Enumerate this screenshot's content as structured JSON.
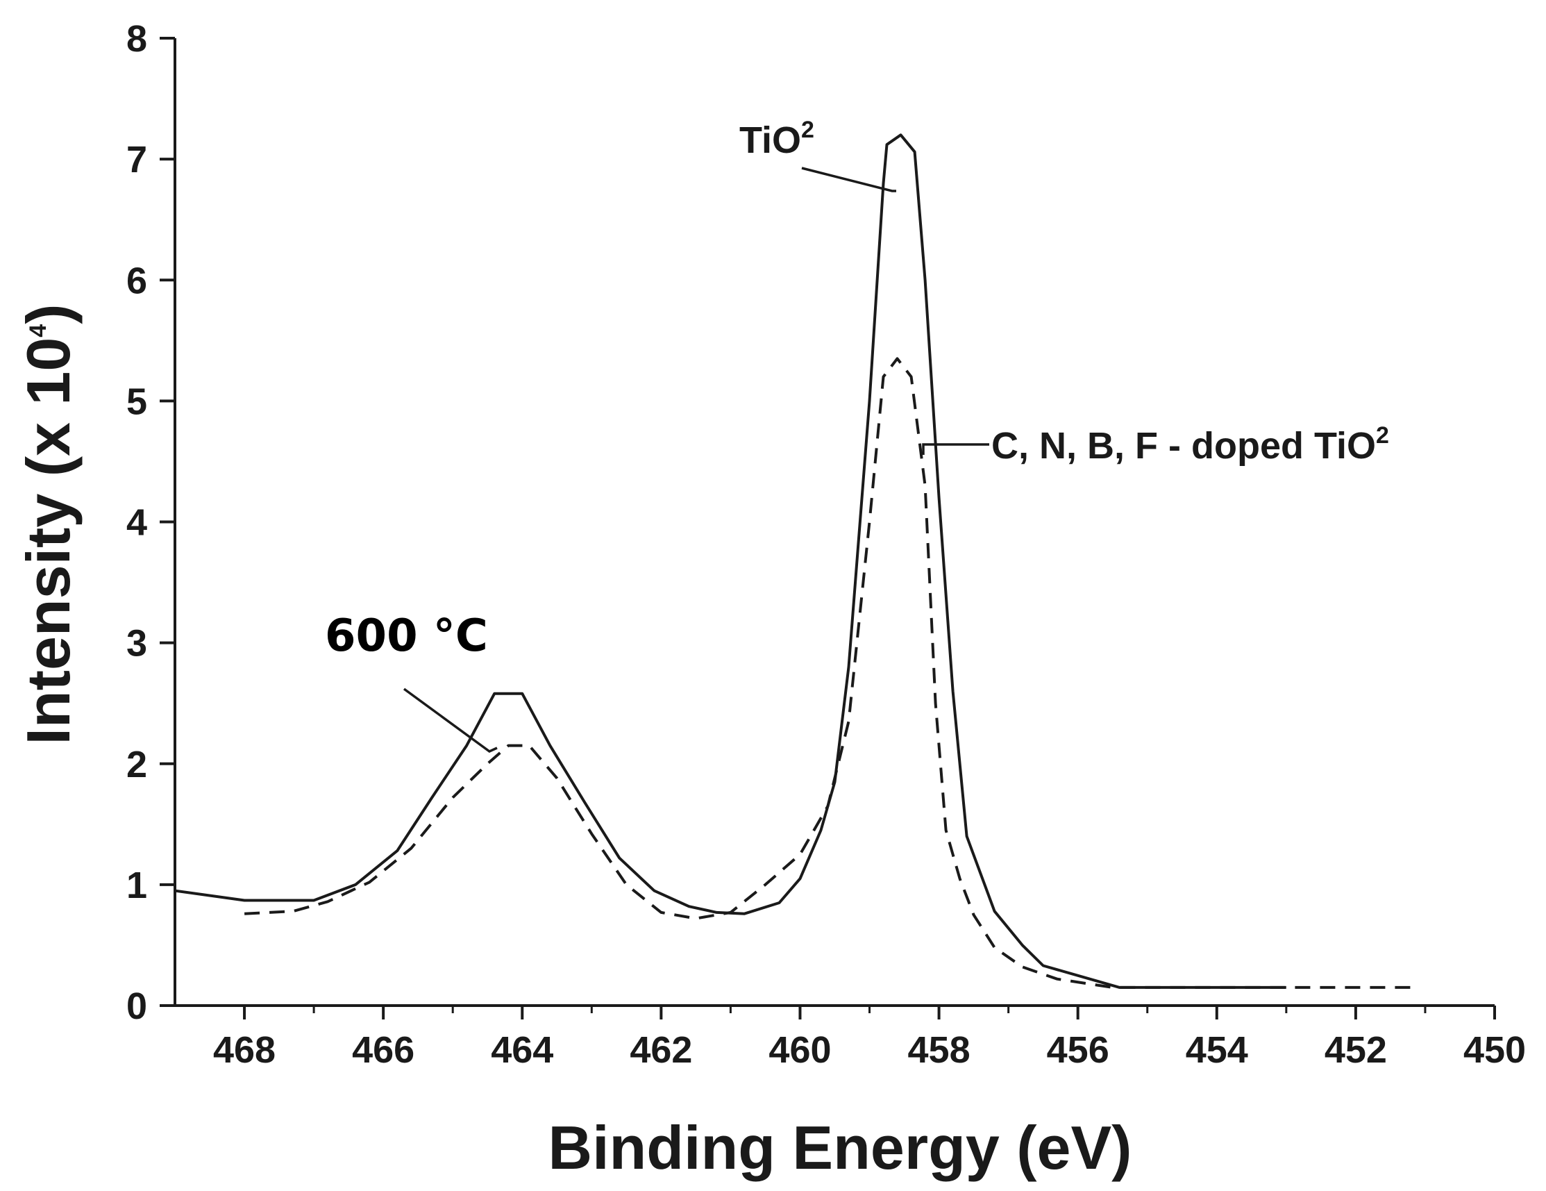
{
  "chart_data": {
    "type": "line",
    "title": "",
    "xlabel": "Binding Energy (eV)",
    "ylabel_main": "Intensity (x 10",
    "ylabel_sup": "4",
    "ylabel_close": ")",
    "xlim": [
      469,
      450
    ],
    "ylim": [
      0,
      8
    ],
    "x_reversed": true,
    "grid": false,
    "legend": "none",
    "x_ticks": [
      468,
      466,
      464,
      462,
      460,
      458,
      456,
      454,
      452,
      450
    ],
    "y_ticks": [
      0,
      1,
      2,
      3,
      4,
      5,
      6,
      7,
      8
    ],
    "series": [
      {
        "style": "solid",
        "color": "#1a1a1a",
        "x": [
          469.0,
          468.0,
          467.0,
          466.4,
          465.8,
          465.3,
          464.8,
          464.4,
          464.0,
          463.6,
          463.1,
          462.6,
          462.1,
          461.6,
          461.2,
          460.8,
          460.3,
          460.0,
          459.7,
          459.5,
          459.3,
          459.0,
          458.8,
          458.75,
          458.55,
          458.35,
          458.2,
          458.0,
          457.8,
          457.6,
          457.2,
          456.8,
          456.5,
          455.4,
          454.0,
          453.0
        ],
        "y": [
          0.95,
          0.87,
          0.87,
          1.0,
          1.28,
          1.72,
          2.15,
          2.58,
          2.58,
          2.15,
          1.68,
          1.22,
          0.95,
          0.82,
          0.77,
          0.76,
          0.85,
          1.05,
          1.45,
          1.85,
          2.8,
          5.0,
          6.8,
          7.12,
          7.2,
          7.06,
          6.0,
          4.2,
          2.6,
          1.4,
          0.78,
          0.5,
          0.33,
          0.15,
          0.15,
          0.15
        ]
      },
      {
        "style": "dashed",
        "color": "#1a1a1a",
        "x": [
          468.0,
          467.3,
          466.8,
          466.2,
          465.6,
          465.0,
          464.5,
          464.2,
          463.9,
          463.5,
          463.0,
          462.5,
          462.0,
          461.5,
          461.0,
          460.5,
          460.0,
          459.6,
          459.3,
          459.0,
          458.8,
          458.6,
          458.4,
          458.2,
          458.05,
          457.9,
          457.7,
          457.5,
          457.2,
          456.8,
          456.3,
          455.5,
          454.0,
          452.5,
          451.2
        ],
        "y": [
          0.76,
          0.78,
          0.86,
          1.02,
          1.3,
          1.72,
          2.0,
          2.15,
          2.15,
          1.88,
          1.42,
          1.0,
          0.77,
          0.72,
          0.77,
          1.0,
          1.25,
          1.65,
          2.35,
          4.0,
          5.2,
          5.35,
          5.2,
          4.3,
          2.5,
          1.45,
          1.05,
          0.75,
          0.48,
          0.32,
          0.22,
          0.15,
          0.15,
          0.15,
          0.15
        ]
      }
    ],
    "annotations": {
      "tio2_base": "TiO",
      "tio2_sup": "2",
      "doped_base": "C, N, B, F - doped TiO",
      "doped_sup": "2",
      "temperature": "600 °C"
    }
  }
}
